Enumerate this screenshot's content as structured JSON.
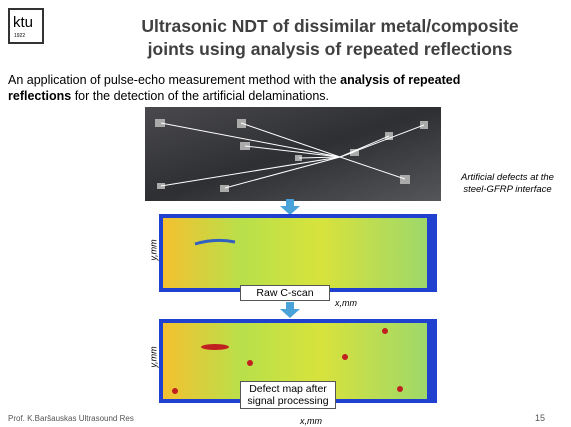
{
  "header": {
    "logo": "ktu",
    "logo_year": "1922",
    "title_lines": [
      "Ultrasonic NDT of dissimilar metal/composite",
      "joints using analysis of repeated reflections"
    ]
  },
  "body": {
    "parts": [
      {
        "text": "An application of pulse-echo measurement method with the ",
        "bold": false
      },
      {
        "text": "analysis of repeated reflections",
        "bold": true
      },
      {
        "text": " for the detection of the artificial delaminations.",
        "bold": false
      }
    ]
  },
  "annotation": [
    "Artificial defects at the",
    "steel-GFRP interface"
  ],
  "scans": [
    {
      "label": [
        "Raw C-scan"
      ],
      "y_label": "y,mm",
      "x_label": "x,mm"
    },
    {
      "label": [
        "Defect map after",
        "signal processing"
      ],
      "y_label": "y,mm",
      "x_label": "x,mm"
    }
  ],
  "footer": {
    "author": "Prof. K.Baršauskas Ultrasound Res",
    "page": "15"
  }
}
